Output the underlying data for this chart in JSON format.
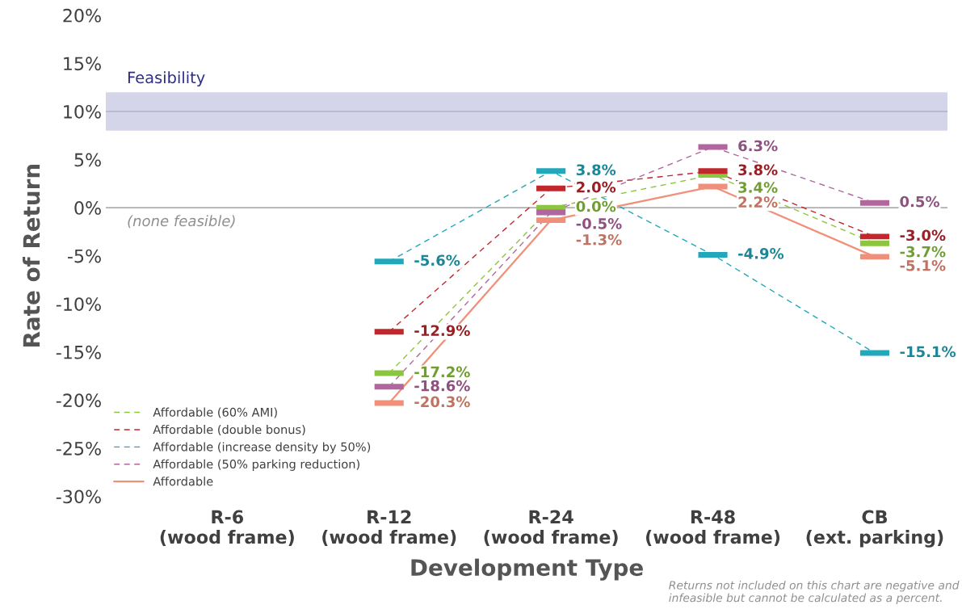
{
  "chart_data": {
    "type": "line",
    "ylabel": "Rate of Return",
    "xlabel": "Development Type",
    "categories": [
      "R-6\n(wood frame)",
      "R-12\n(wood frame)",
      "R-24\n(wood frame)",
      "R-48\n(wood frame)",
      "CB\n(ext. parking)"
    ],
    "series": [
      {
        "name": "Affordable (60% AMI)",
        "color": "#8cc63f",
        "line_style": "dashed",
        "values": [
          null,
          -17.2,
          0.0,
          3.4,
          -3.7
        ],
        "value_labels": [
          null,
          "-17.2%",
          "0.0%",
          "3.4%",
          "-3.7%"
        ]
      },
      {
        "name": "Affordable (double bonus)",
        "color": "#c1272d",
        "line_style": "dashed",
        "values": [
          null,
          -12.9,
          2.0,
          3.8,
          -3.0
        ],
        "value_labels": [
          null,
          "-12.9%",
          "2.0%",
          "3.8%",
          "-3.0%"
        ]
      },
      {
        "name": "Affordable (increase density by 50%)",
        "color": "#22a7bb",
        "line_style": "dashed",
        "values": [
          null,
          -5.6,
          3.8,
          -4.9,
          -15.1
        ],
        "value_labels": [
          null,
          "-5.6%",
          "3.8%",
          "-4.9%",
          "-15.1%"
        ]
      },
      {
        "name": "Affordable (50% parking reduction)",
        "color": "#b1669e",
        "line_style": "dashed",
        "values": [
          null,
          -18.6,
          -0.5,
          6.3,
          0.5
        ],
        "value_labels": [
          null,
          "-18.6%",
          "-0.5%",
          "6.3%",
          "0.5%"
        ]
      },
      {
        "name": "Affordable",
        "color": "#f0907a",
        "line_style": "solid",
        "values": [
          null,
          -20.3,
          -1.3,
          2.2,
          -5.1
        ],
        "value_labels": [
          null,
          "-20.3%",
          "-1.3%",
          "2.2%",
          "-5.1%"
        ]
      }
    ],
    "ylim": [
      -30,
      20
    ],
    "yticks": [
      {
        "value": -30,
        "label": "-30%"
      },
      {
        "value": -25,
        "label": "-25%"
      },
      {
        "value": -20,
        "label": "-20%"
      },
      {
        "value": -15,
        "label": "-15%"
      },
      {
        "value": -10,
        "label": "-10%"
      },
      {
        "value": -5,
        "label": "-5%"
      },
      {
        "value": 0,
        "label": "0%"
      },
      {
        "value": 5,
        "label": "5%"
      },
      {
        "value": 10,
        "label": "10%"
      },
      {
        "value": 15,
        "label": "15%"
      },
      {
        "value": 20,
        "label": "20%"
      }
    ],
    "bands": [
      {
        "axis": "y",
        "from": 8,
        "to": 12,
        "label": "Feasibility",
        "color": "#d5d5ea"
      }
    ],
    "ref_lines": [
      {
        "axis": "y",
        "value": 10,
        "color": "#b0b0d0"
      },
      {
        "axis": "y",
        "value": 0,
        "color": "#909090"
      }
    ],
    "annotations": [
      "(none feasible)",
      "Returns not included on this chart are negative and infeasible but cannot be calculated as a percent."
    ],
    "grid": false,
    "legend": "bottom left"
  }
}
